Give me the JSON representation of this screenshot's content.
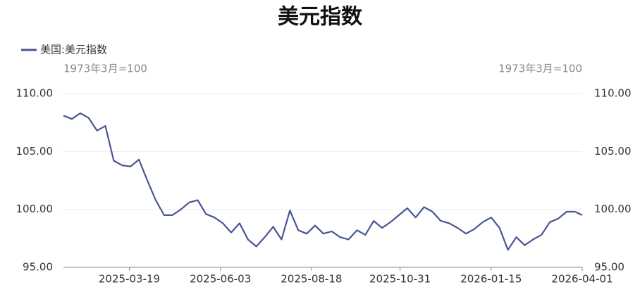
{
  "chart_data": {
    "type": "line",
    "title": "美元指数",
    "y_label": "1973年3月=100",
    "y2_label": "1973年3月=100",
    "legend": "top-left",
    "grid": true,
    "x": [
      "2025-01-23",
      "2025-01-30",
      "2025-02-06",
      "2025-02-13",
      "2025-02-20",
      "2025-02-27",
      "2025-03-06",
      "2025-03-13",
      "2025-03-20",
      "2025-03-27",
      "2025-04-03",
      "2025-04-10",
      "2025-04-17",
      "2025-04-24",
      "2025-05-01",
      "2025-05-08",
      "2025-05-15",
      "2025-05-22",
      "2025-05-29",
      "2025-06-05",
      "2025-06-12",
      "2025-06-19",
      "2025-06-26",
      "2025-07-03",
      "2025-07-10",
      "2025-07-17",
      "2025-07-24",
      "2025-07-31",
      "2025-08-07",
      "2025-08-14",
      "2025-08-21",
      "2025-08-28",
      "2025-09-04",
      "2025-09-11",
      "2025-09-18",
      "2025-09-25",
      "2025-10-02",
      "2025-10-09",
      "2025-10-16",
      "2025-10-23",
      "2025-10-30",
      "2025-11-06",
      "2025-11-13",
      "2025-11-20",
      "2025-11-27",
      "2025-12-04",
      "2025-12-11",
      "2025-12-18",
      "2025-12-25",
      "2026-01-01",
      "2026-01-08",
      "2026-01-15",
      "2026-01-22",
      "2026-01-29",
      "2026-02-05",
      "2026-02-12",
      "2026-02-19",
      "2026-02-26",
      "2026-03-05",
      "2026-03-12",
      "2026-03-19",
      "2026-03-26",
      "2026-04-01"
    ],
    "series": [
      {
        "name": "美国:美元指数",
        "color": "#4a5591",
        "values": [
          108.1,
          107.8,
          108.3,
          107.9,
          106.8,
          107.2,
          104.2,
          103.8,
          103.7,
          104.3,
          102.5,
          100.8,
          99.5,
          99.5,
          100.0,
          100.6,
          100.8,
          99.6,
          99.3,
          98.8,
          98.0,
          98.8,
          97.4,
          96.8,
          97.6,
          98.5,
          97.4,
          99.9,
          98.2,
          97.9,
          98.6,
          97.9,
          98.1,
          97.6,
          97.4,
          98.2,
          97.8,
          99.0,
          98.4,
          98.9,
          99.5,
          100.1,
          99.3,
          100.2,
          99.8,
          99.0,
          98.8,
          98.4,
          97.9,
          98.3,
          98.9,
          99.3,
          98.4,
          96.5,
          97.6,
          96.9,
          97.4,
          97.8,
          98.9,
          99.2,
          99.8,
          99.8,
          99.5
        ]
      }
    ],
    "xlim": [
      "2025-01-23",
      "2026-04-01"
    ],
    "xticks": [
      "2025-03-19",
      "2025-06-03",
      "2025-08-18",
      "2025-10-31",
      "2026-01-15",
      "2026-04-01"
    ],
    "ylim": [
      95,
      110
    ],
    "yticks": [
      {
        "value": 95,
        "label": "95.00"
      },
      {
        "value": 100,
        "label": "100.00"
      },
      {
        "value": 105,
        "label": "105.00"
      },
      {
        "value": 110,
        "label": "110.00"
      }
    ],
    "y2lim": [
      95,
      110
    ],
    "y2ticks": [
      {
        "value": 95,
        "label": "95.00"
      },
      {
        "value": 100,
        "label": "100.00"
      },
      {
        "value": 105,
        "label": "105.00"
      },
      {
        "value": 110,
        "label": "110.00"
      }
    ]
  }
}
